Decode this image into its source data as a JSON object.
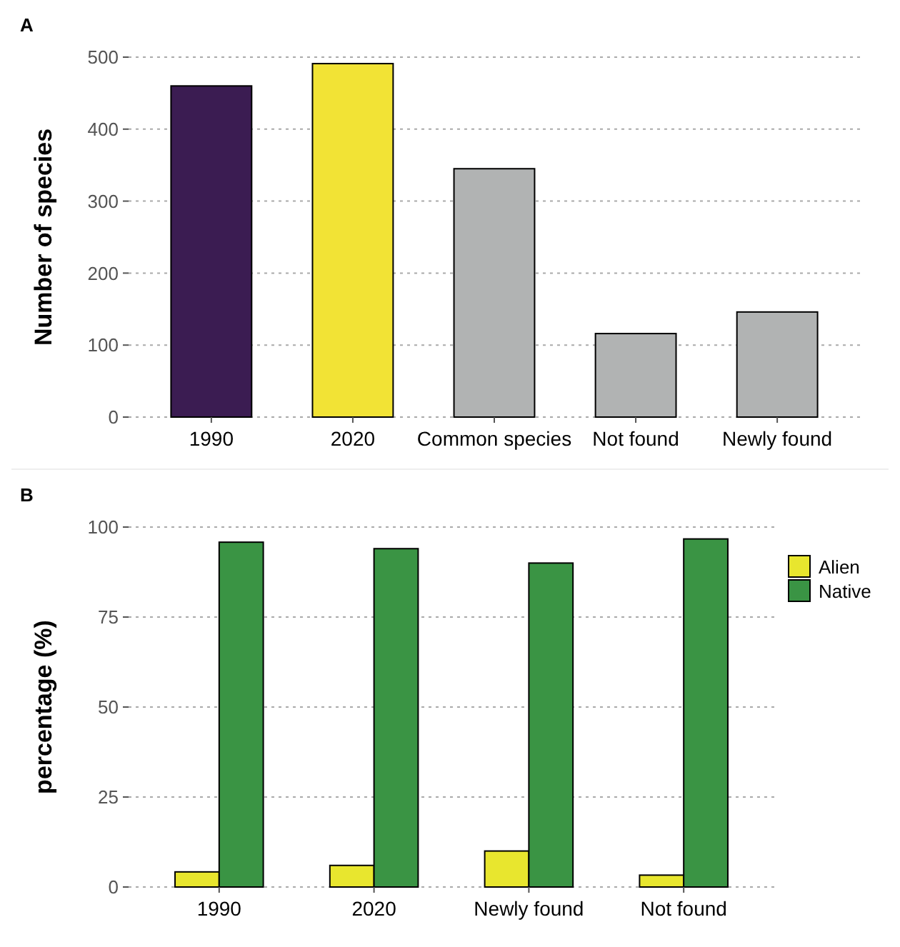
{
  "chart_data": [
    {
      "type": "bar",
      "title": "A",
      "ylabel": "Number of species",
      "categories": [
        "1990",
        "2020",
        "Common species",
        "Not found",
        "Newly found"
      ],
      "values": [
        460,
        491,
        345,
        116,
        146
      ],
      "colors": [
        "#3b1c52",
        "#f2e335",
        "#b1b3b3",
        "#b1b3b3",
        "#b1b3b3"
      ],
      "ylim": [
        0,
        500
      ],
      "yticks": [
        0,
        100,
        200,
        300,
        400,
        500
      ],
      "grid": "y",
      "legend": false
    },
    {
      "type": "bar",
      "title": "B",
      "ylabel": "percentage (%)",
      "categories": [
        "1990",
        "2020",
        "Newly found",
        "Not found"
      ],
      "series": [
        {
          "name": "Alien",
          "color": "#e8e62e",
          "values": [
            4.2,
            6,
            10,
            3.3
          ]
        },
        {
          "name": "Native",
          "color": "#3a9444",
          "values": [
            95.8,
            94,
            90,
            96.7
          ]
        }
      ],
      "ylim": [
        0,
        100
      ],
      "yticks": [
        0,
        25,
        50,
        75,
        100
      ],
      "grid": "y",
      "legend": "right"
    }
  ]
}
